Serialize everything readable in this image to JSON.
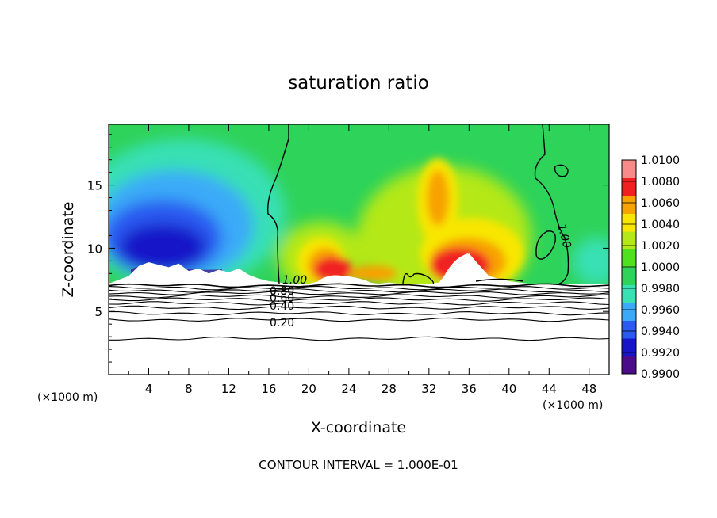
{
  "chart_data": {
    "type": "heatmap",
    "title": "saturation ratio",
    "xlabel": "X-coordinate",
    "ylabel": "Z-coordinate",
    "x_unit_left": "(×1000 m)",
    "x_unit_right": "(×1000 m)",
    "xlim": [
      0,
      50
    ],
    "ylim": [
      0,
      19.8
    ],
    "x_ticks": [
      4,
      8,
      12,
      16,
      20,
      24,
      28,
      32,
      36,
      40,
      44,
      48
    ],
    "y_ticks": [
      5,
      10,
      15
    ],
    "footer": "CONTOUR INTERVAL = 1.000E-01",
    "colorbar": {
      "levels": [
        "0.9900",
        "0.9920",
        "0.9940",
        "0.9960",
        "0.9980",
        "1.0000",
        "1.0020",
        "1.0040",
        "1.0060",
        "1.0080",
        "1.0100"
      ],
      "colors": [
        "#4b0c8c",
        "#1616c8",
        "#2a5af0",
        "#3aaaf8",
        "#38e0b4",
        "#2ed35a",
        "#4fe01e",
        "#b4e818",
        "#f8e600",
        "#f8a200",
        "#f02020",
        "#f88a8a"
      ]
    },
    "contour_labels": [
      "1.00",
      "1.00",
      "0.80",
      "0.60",
      "0.40",
      "0.20"
    ],
    "surface_profile": {
      "x": [
        0,
        1,
        2,
        3,
        4,
        5,
        6,
        7,
        8,
        9,
        10,
        11,
        12,
        13,
        14,
        15,
        16,
        17,
        18,
        19,
        20,
        21,
        22,
        23,
        24,
        25,
        26,
        27,
        28,
        29,
        30,
        31,
        32,
        33,
        34,
        35,
        36,
        37,
        38,
        39,
        40,
        41,
        42,
        43,
        44,
        45,
        46,
        47,
        48,
        49,
        50
      ],
      "y": [
        7.2,
        7.5,
        7.8,
        8.6,
        8.9,
        8.7,
        8.5,
        8.8,
        8.2,
        8.4,
        8.0,
        8.3,
        8.1,
        8.4,
        7.9,
        7.6,
        7.4,
        7.3,
        7.2,
        7.2,
        7.2,
        7.4,
        7.3,
        7.3,
        7.2,
        7.2,
        7.3,
        7.2,
        7.3,
        7.2,
        7.2,
        7.2,
        7.2,
        7.3,
        8.3,
        8.8,
        9.6,
        8.7,
        7.8,
        7.6,
        7.4,
        7.3,
        7.2,
        7.2,
        7.2,
        7.2,
        7.2,
        7.2,
        7.2,
        7.2,
        7.2
      ]
    },
    "contour_heights": [
      7.05,
      6.85,
      6.65,
      6.45,
      6.2,
      5.95,
      5.65,
      5.3,
      4.85,
      4.35,
      2.85
    ]
  }
}
